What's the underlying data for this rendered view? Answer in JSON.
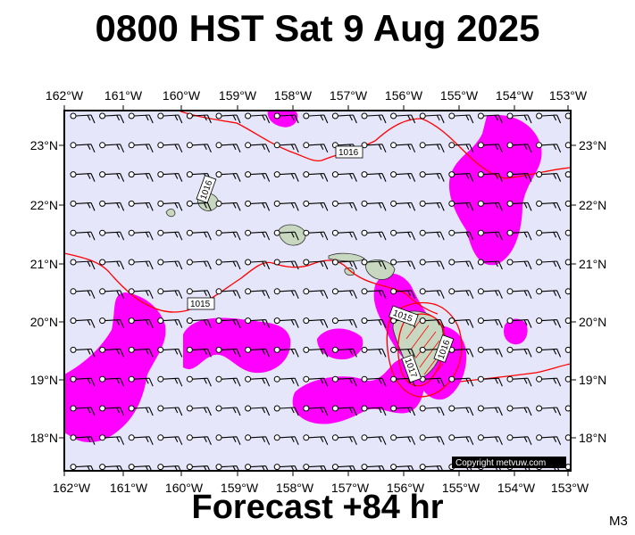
{
  "title": "0800 HST Sat 9 Aug 2025",
  "footer": "Forecast +84 hr",
  "model_tag": "M3",
  "copyright": "Copyright metvuw.com",
  "lon_labels": [
    "162°W",
    "161°W",
    "160°W",
    "159°W",
    "158°W",
    "157°W",
    "156°W",
    "155°W",
    "154°W",
    "153°W"
  ],
  "lat_labels": [
    "23°N",
    "22°N",
    "21°N",
    "20°N",
    "19°N",
    "18°N"
  ],
  "isobar_labels": [
    "1016",
    "1016",
    "1015",
    "1015",
    "1017",
    "1016"
  ],
  "colors": {
    "map_background": "#e6e6fa",
    "precip": "#ff00ff",
    "isobar": "#ff0000",
    "land": "#c8d8c0"
  }
}
